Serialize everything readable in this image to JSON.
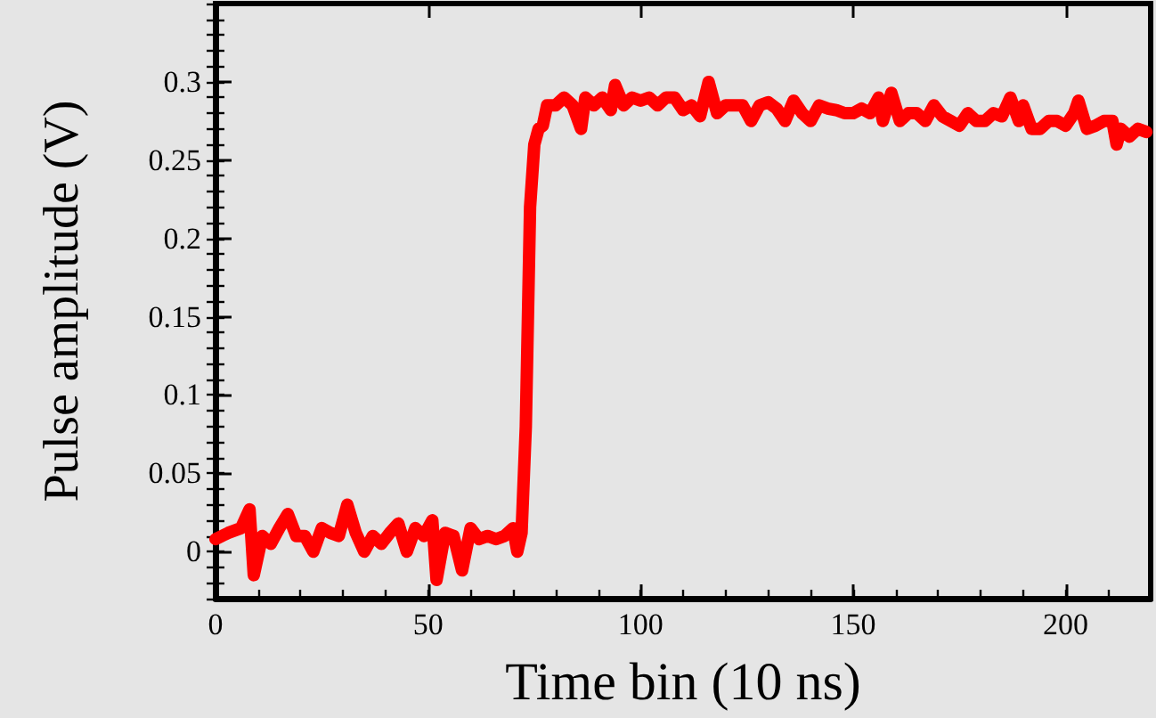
{
  "chart_data": {
    "type": "line",
    "xlabel": "Time bin (10 ns)",
    "ylabel": "Pulse amplitude (V)",
    "xlim": [
      0,
      220
    ],
    "xticks": [
      0,
      50,
      100,
      150,
      200
    ],
    "ylim": [
      -0.03,
      0.35
    ],
    "yticks": [
      0,
      0.05,
      0.1,
      0.15,
      0.2,
      0.25,
      0.3
    ],
    "grid": false,
    "line_style": "solid",
    "series": [
      {
        "color": "#ff0000",
        "x": [
          0,
          3,
          6,
          8,
          9,
          11,
          13,
          15,
          17,
          19,
          21,
          23,
          25,
          27,
          29,
          31,
          33,
          35,
          37,
          39,
          41,
          43,
          45,
          47,
          49,
          51,
          52,
          54,
          56,
          58,
          60,
          62,
          64,
          66,
          68,
          70,
          71,
          72,
          73,
          74,
          75,
          76,
          77,
          78,
          80,
          82,
          84,
          86,
          87,
          89,
          91,
          93,
          94,
          96,
          98,
          100,
          102,
          104,
          106,
          108,
          110,
          112,
          114,
          116,
          118,
          120,
          122,
          124,
          126,
          128,
          130,
          132,
          134,
          136,
          138,
          140,
          142,
          144,
          146,
          148,
          150,
          152,
          154,
          156,
          157,
          159,
          161,
          163,
          165,
          167,
          169,
          171,
          173,
          175,
          177,
          179,
          181,
          183,
          185,
          187,
          189,
          190,
          192,
          194,
          196,
          198,
          200,
          202,
          203,
          205,
          207,
          209,
          211,
          212,
          213,
          215,
          217,
          219
        ],
        "values": [
          0.008,
          0.012,
          0.015,
          0.027,
          -0.015,
          0.01,
          0.005,
          0.015,
          0.024,
          0.01,
          0.01,
          0.0,
          0.015,
          0.012,
          0.01,
          0.03,
          0.012,
          0.0,
          0.01,
          0.005,
          0.012,
          0.018,
          0.0,
          0.015,
          0.01,
          0.02,
          -0.018,
          0.012,
          0.01,
          -0.012,
          0.015,
          0.008,
          0.01,
          0.008,
          0.01,
          0.015,
          0.0,
          0.012,
          0.08,
          0.22,
          0.26,
          0.27,
          0.272,
          0.285,
          0.285,
          0.29,
          0.285,
          0.27,
          0.29,
          0.285,
          0.29,
          0.282,
          0.298,
          0.285,
          0.29,
          0.288,
          0.29,
          0.285,
          0.29,
          0.29,
          0.282,
          0.285,
          0.278,
          0.3,
          0.28,
          0.285,
          0.285,
          0.285,
          0.275,
          0.285,
          0.287,
          0.283,
          0.275,
          0.288,
          0.28,
          0.275,
          0.285,
          0.283,
          0.282,
          0.28,
          0.28,
          0.283,
          0.28,
          0.29,
          0.275,
          0.293,
          0.275,
          0.28,
          0.28,
          0.275,
          0.285,
          0.278,
          0.275,
          0.272,
          0.28,
          0.275,
          0.275,
          0.28,
          0.278,
          0.29,
          0.275,
          0.285,
          0.27,
          0.27,
          0.275,
          0.275,
          0.272,
          0.28,
          0.288,
          0.27,
          0.272,
          0.275,
          0.275,
          0.26,
          0.27,
          0.265,
          0.27,
          0.268
        ]
      }
    ]
  }
}
